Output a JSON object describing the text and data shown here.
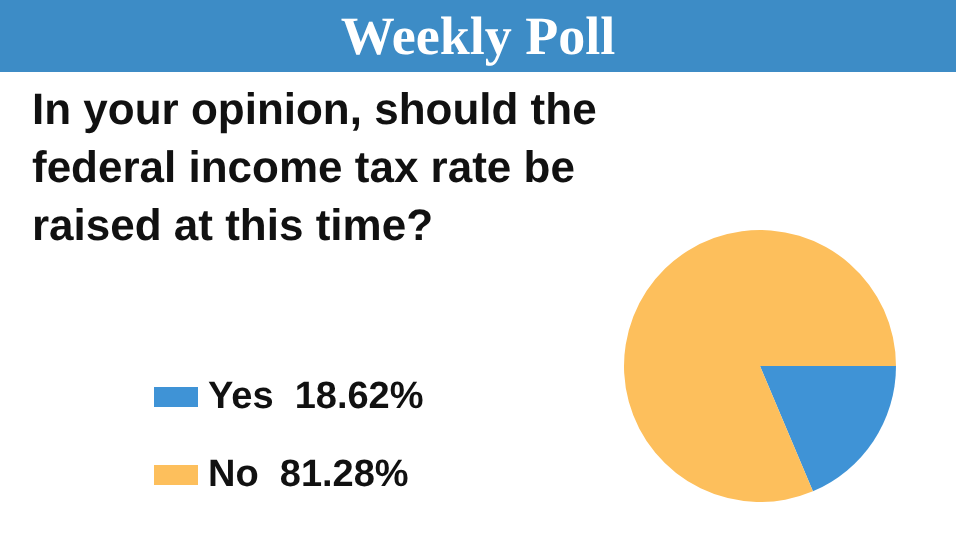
{
  "chart_data": {
    "type": "pie",
    "title": "Weekly Poll",
    "subtitle": "In your opinion, should the federal income tax rate be raised at this time?",
    "categories": [
      "Yes",
      "No"
    ],
    "values": [
      18.62,
      81.28
    ],
    "value_labels": [
      "18.62%",
      "81.28%"
    ],
    "colors": [
      "#3f93d6",
      "#fdbf5c"
    ],
    "legend": "bottom left"
  }
}
